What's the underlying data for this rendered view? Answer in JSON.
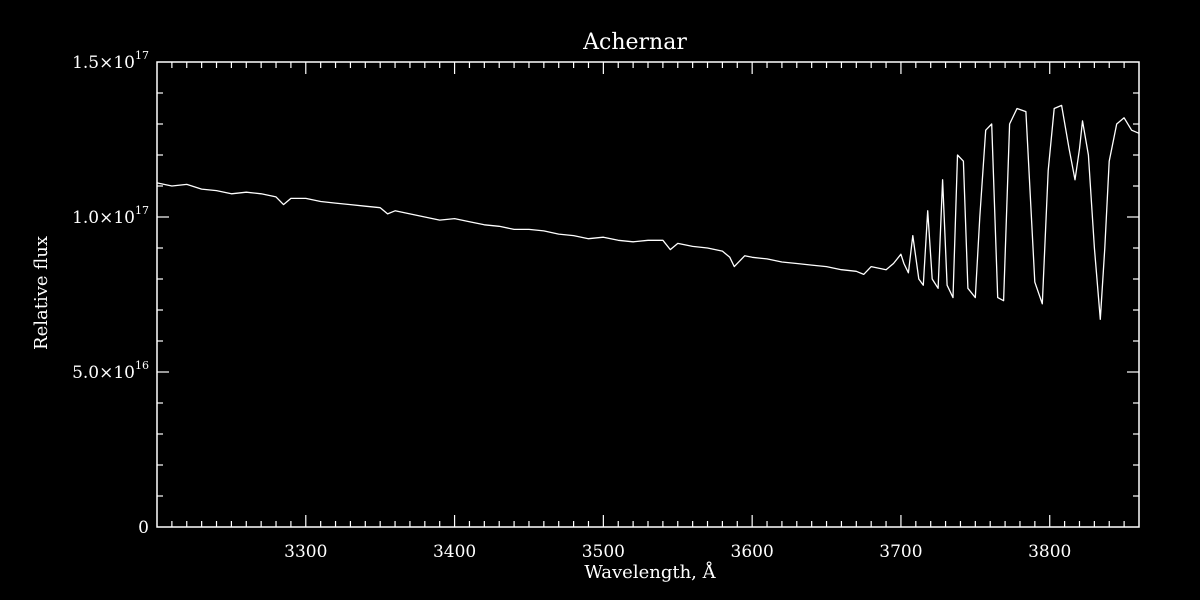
{
  "colors": {
    "background": "#000000",
    "foreground": "#ffffff"
  },
  "chart_data": {
    "type": "line",
    "title": "Achernar",
    "xlabel": "Wavelength, Å",
    "ylabel": "Relative flux",
    "xlim": [
      3200,
      3860
    ],
    "ylim": [
      0,
      1.5e+17
    ],
    "grid": false,
    "x_ticks": [
      {
        "value": 3300,
        "label": "3300"
      },
      {
        "value": 3400,
        "label": "3400"
      },
      {
        "value": 3500,
        "label": "3500"
      },
      {
        "value": 3600,
        "label": "3600"
      },
      {
        "value": 3700,
        "label": "3700"
      },
      {
        "value": 3800,
        "label": "3800"
      }
    ],
    "y_ticks": [
      {
        "value": 0,
        "mantissa": "0",
        "exponent": ""
      },
      {
        "value": 5e+16,
        "mantissa": "5.0×10",
        "exponent": "16"
      },
      {
        "value": 1e+17,
        "mantissa": "1.0×10",
        "exponent": "17"
      },
      {
        "value": 1.5e+17,
        "mantissa": "1.5×10",
        "exponent": "17"
      }
    ],
    "series": [
      {
        "x": [
          3200,
          3210,
          3220,
          3230,
          3240,
          3250,
          3260,
          3270,
          3280,
          3285,
          3290,
          3300,
          3310,
          3320,
          3330,
          3340,
          3350,
          3355,
          3360,
          3370,
          3380,
          3390,
          3400,
          3410,
          3420,
          3430,
          3440,
          3450,
          3460,
          3470,
          3480,
          3490,
          3500,
          3510,
          3520,
          3530,
          3540,
          3545,
          3550,
          3560,
          3570,
          3580,
          3585,
          3588,
          3595,
          3600,
          3610,
          3620,
          3630,
          3640,
          3650,
          3660,
          3670,
          3675,
          3680,
          3690,
          3695,
          3700,
          3702,
          3705,
          3708,
          3712,
          3715,
          3718,
          3721,
          3725,
          3728,
          3731,
          3735,
          3738,
          3742,
          3745,
          3750,
          3753,
          3757,
          3761,
          3765,
          3769,
          3773,
          3778,
          3784,
          3790,
          3795,
          3799,
          3803,
          3808,
          3813,
          3817,
          3820,
          3822,
          3826,
          3830,
          3834,
          3837,
          3840,
          3845,
          3850,
          3855,
          3860
        ],
        "values": [
          1.11e+17,
          1.1e+17,
          1.105e+17,
          1.09e+17,
          1.085e+17,
          1.075e+17,
          1.08e+17,
          1.075e+17,
          1.065e+17,
          1.04e+17,
          1.06e+17,
          1.06e+17,
          1.05e+17,
          1.045e+17,
          1.04e+17,
          1.035e+17,
          1.03e+17,
          1.01e+17,
          1.02e+17,
          1.01e+17,
          1e+17,
          9.9e+16,
          9.95e+16,
          9.85e+16,
          9.75e+16,
          9.7e+16,
          9.6e+16,
          9.6e+16,
          9.55e+16,
          9.45e+16,
          9.4e+16,
          9.3e+16,
          9.35e+16,
          9.25e+16,
          9.2e+16,
          9.25e+16,
          9.25e+16,
          8.95e+16,
          9.15e+16,
          9.05e+16,
          9e+16,
          8.9e+16,
          8.7e+16,
          8.4e+16,
          8.75e+16,
          8.7e+16,
          8.65e+16,
          8.55e+16,
          8.5e+16,
          8.45e+16,
          8.4e+16,
          8.3e+16,
          8.25e+16,
          8.15e+16,
          8.4e+16,
          8.3e+16,
          8.5e+16,
          8.8e+16,
          8.5e+16,
          8.2e+16,
          9.4e+16,
          8e+16,
          7.8e+16,
          1.02e+17,
          8e+16,
          7.7e+16,
          1.12e+17,
          7.8e+16,
          7.4e+16,
          1.2e+17,
          1.18e+17,
          7.7e+16,
          7.4e+16,
          1e+17,
          1.28e+17,
          1.3e+17,
          7.4e+16,
          7.3e+16,
          1.3e+17,
          1.35e+17,
          1.34e+17,
          7.9e+16,
          7.2e+16,
          1.15e+17,
          1.35e+17,
          1.36e+17,
          1.22e+17,
          1.12e+17,
          1.22e+17,
          1.31e+17,
          1.2e+17,
          9e+16,
          6.7e+16,
          9e+16,
          1.18e+17,
          1.3e+17,
          1.32e+17,
          1.28e+17,
          1.27e+17
        ]
      }
    ]
  }
}
